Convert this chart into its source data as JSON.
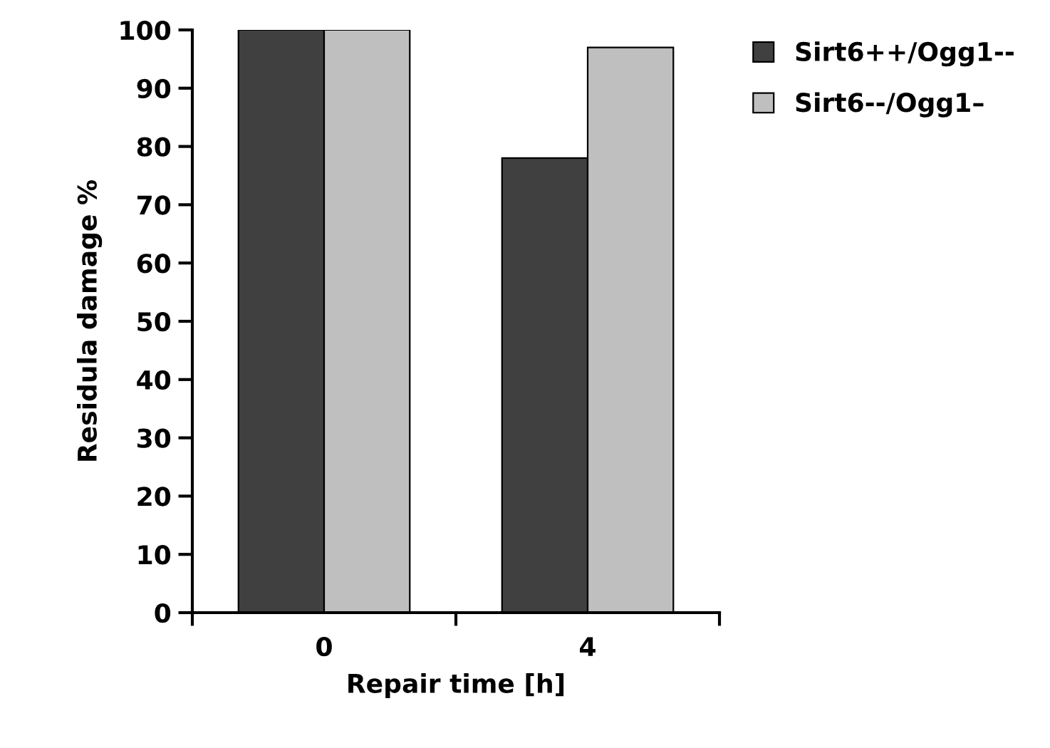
{
  "chart_data": {
    "type": "bar",
    "xlabel": "Repair time [h]",
    "ylabel": "Residula damage %",
    "categories": [
      "0",
      "4"
    ],
    "series": [
      {
        "name": "Sirt6++/Ogg1--",
        "color": "#404040",
        "values": [
          100,
          78
        ]
      },
      {
        "name": "Sirt6--/Ogg1–",
        "color": "#bfbfbf",
        "values": [
          100,
          97
        ]
      }
    ],
    "ylim": [
      0,
      100
    ],
    "yticks": [
      0,
      10,
      20,
      30,
      40,
      50,
      60,
      70,
      80,
      90,
      100
    ],
    "grid": false,
    "legend": "top right"
  }
}
